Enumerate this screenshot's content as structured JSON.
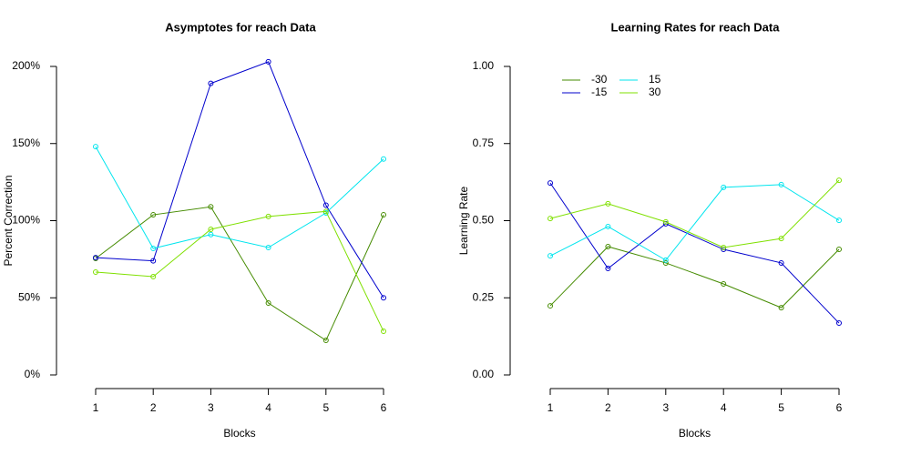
{
  "chart_data": [
    {
      "type": "line",
      "title": "Asymptotes for reach Data",
      "xlabel": "Blocks",
      "ylabel": "Percent Correction",
      "x": [
        1,
        2,
        3,
        4,
        5,
        6
      ],
      "xlim": [
        1,
        6
      ],
      "xticks": [
        1,
        2,
        3,
        4,
        5,
        6
      ],
      "ylim": [
        0,
        200
      ],
      "yticks": [
        {
          "value": 0,
          "label": "0%"
        },
        {
          "value": 50,
          "label": "50%"
        },
        {
          "value": 100,
          "label": "100%"
        },
        {
          "value": 150,
          "label": "150%"
        },
        {
          "value": 200,
          "label": "200%"
        }
      ],
      "series": [
        {
          "color": "#458b00",
          "values": [
            75.5,
            103.8,
            109,
            46.6,
            22.4,
            103.8
          ]
        },
        {
          "color": "#0000cd",
          "values": [
            76,
            74,
            189,
            203,
            110,
            50
          ]
        },
        {
          "color": "#00e5ee",
          "values": [
            148,
            82,
            91,
            82.6,
            105,
            140
          ]
        },
        {
          "color": "#7fe000",
          "values": [
            66.7,
            63.7,
            94.4,
            102.7,
            106,
            28.3
          ]
        }
      ]
    },
    {
      "type": "line",
      "title": "Learning Rates for reach Data",
      "xlabel": "Blocks",
      "ylabel": "Learning Rate",
      "x": [
        1,
        2,
        3,
        4,
        5,
        6
      ],
      "xlim": [
        1,
        6
      ],
      "xticks": [
        1,
        2,
        3,
        4,
        5,
        6
      ],
      "ylim": [
        0,
        1
      ],
      "yticks": [
        {
          "value": 0,
          "label": "0.00"
        },
        {
          "value": 0.25,
          "label": "0.25"
        },
        {
          "value": 0.5,
          "label": "0.50"
        },
        {
          "value": 0.75,
          "label": "0.75"
        },
        {
          "value": 1,
          "label": "1.00"
        }
      ],
      "legend": "top-left",
      "series": [
        {
          "name": "-30",
          "color": "#458b00",
          "values": [
            0.224,
            0.416,
            0.363,
            0.295,
            0.218,
            0.407
          ]
        },
        {
          "name": "-15",
          "color": "#0000cd",
          "values": [
            0.622,
            0.345,
            0.49,
            0.407,
            0.363,
            0.168
          ]
        },
        {
          "name": "15",
          "color": "#00e5ee",
          "values": [
            0.386,
            0.481,
            0.372,
            0.608,
            0.617,
            0.501
          ]
        },
        {
          "name": "30",
          "color": "#7fe000",
          "values": [
            0.507,
            0.555,
            0.496,
            0.413,
            0.442,
            0.631
          ]
        }
      ]
    }
  ]
}
